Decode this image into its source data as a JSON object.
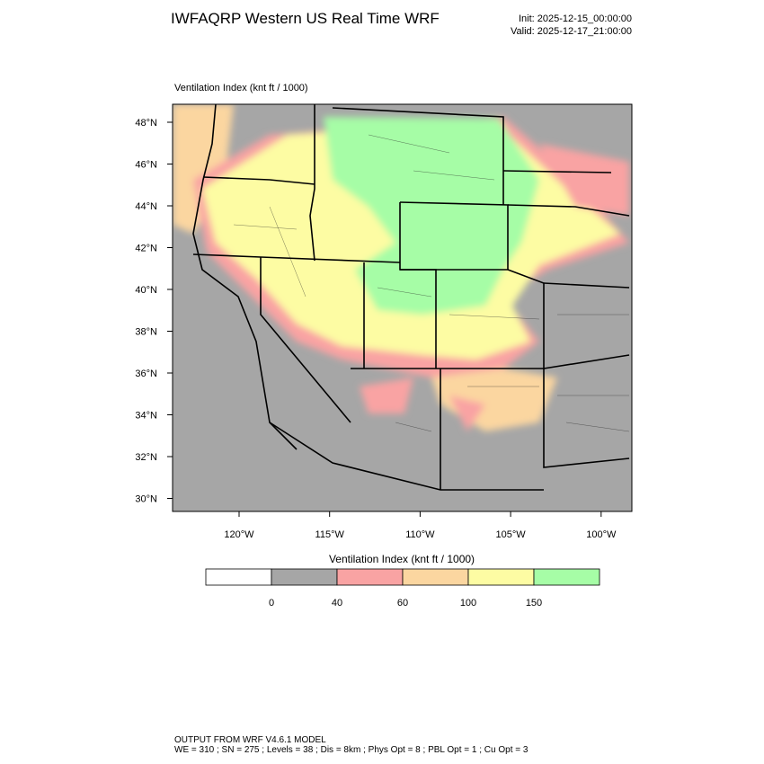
{
  "header": {
    "title": "IWFAQRP Western US Real Time WRF",
    "init": "Init: 2025-12-15_00:00:00",
    "valid": "Valid: 2025-12-17_21:00:00"
  },
  "map": {
    "label": "Ventilation Index   (knt ft / 1000)",
    "lat_labels": [
      "48°N",
      "46°N",
      "44°N",
      "42°N",
      "40°N",
      "38°N",
      "36°N",
      "34°N",
      "32°N",
      "30°N"
    ],
    "lon_labels": [
      "120°W",
      "115°W",
      "110°W",
      "105°W",
      "100°W"
    ]
  },
  "colorbar": {
    "title": "Ventilation Index  (knt ft / 1000)",
    "colors": [
      "#ffffff",
      "#a6a6a6",
      "#f9a3a3",
      "#fbd6a0",
      "#fdfca3",
      "#a6fda6"
    ],
    "levels": [
      0,
      40,
      60,
      100,
      150
    ]
  },
  "footer": {
    "line1": "OUTPUT FROM WRF V4.6.1 MODEL",
    "line2": "WE = 310 ; SN = 275 ; Levels = 38 ; Dis = 8km ; Phys Opt = 8 ; PBL Opt = 1 ; Cu Opt = 3"
  }
}
